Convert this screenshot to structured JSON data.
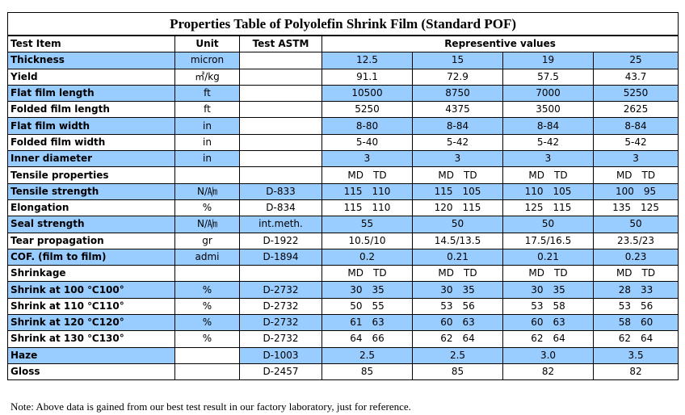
{
  "title": "Properties Table of Polyolefin Shrink Film  (Standard POF)",
  "header": {
    "test_item": "Test Item",
    "unit": "Unit",
    "test_astm": "Test  ASTM",
    "values": "Representive values"
  },
  "rows": [
    {
      "item": "Thickness",
      "unit": "micron",
      "astm": "",
      "v": [
        "12.5",
        "15",
        "19",
        "25"
      ],
      "shade": "blue"
    },
    {
      "item": "Yield",
      "unit": "㎡/kg",
      "astm": "",
      "v": [
        "91.1",
        "72.9",
        "57.5",
        "43.7"
      ],
      "shade": "white"
    },
    {
      "item": "Flat film length",
      "unit": "ft",
      "astm": "",
      "v": [
        "10500",
        "8750",
        "7000",
        "5250"
      ],
      "shade": "blue"
    },
    {
      "item": "Folded film length",
      "unit": "ft",
      "astm": "",
      "v": [
        "5250",
        "4375",
        "3500",
        "2625"
      ],
      "shade": "white"
    },
    {
      "item": "Flat film width",
      "unit": "in",
      "astm": "",
      "v": [
        "8-80",
        "8-84",
        "8-84",
        "8-84"
      ],
      "shade": "blue"
    },
    {
      "item": "Folded film width",
      "unit": "in",
      "astm": "",
      "v": [
        "5-40",
        "5-42",
        "5-42",
        "5-42"
      ],
      "shade": "white"
    },
    {
      "item": "Inner diameter",
      "unit": "in",
      "astm": "",
      "v": [
        "3",
        "3",
        "3",
        "3"
      ],
      "shade": "blue"
    },
    {
      "item": "Tensile properties",
      "unit": "",
      "astm": "",
      "p": [
        [
          "MD",
          "TD"
        ],
        [
          "MD",
          "TD"
        ],
        [
          "MD",
          "TD"
        ],
        [
          "MD",
          "TD"
        ]
      ],
      "shade": "white"
    },
    {
      "item": "Tensile strength",
      "unit": "N/㏟",
      "astm": "D-833",
      "p": [
        [
          "115",
          "110"
        ],
        [
          "115",
          "105"
        ],
        [
          "110",
          "105"
        ],
        [
          "100",
          "95"
        ]
      ],
      "shade": "blue"
    },
    {
      "item": "Elongation",
      "unit": "%",
      "astm": "D-834",
      "p": [
        [
          "115",
          "110"
        ],
        [
          "120",
          "115"
        ],
        [
          "125",
          "115"
        ],
        [
          "135",
          "125"
        ]
      ],
      "shade": "white"
    },
    {
      "item": "Seal strength",
      "unit": "N/㏟",
      "astm": "int.meth.",
      "v": [
        "55",
        "50",
        "50",
        "50"
      ],
      "shade": "blue"
    },
    {
      "item": "Tear propagation",
      "unit": "gr",
      "astm": "D-1922",
      "v": [
        "10.5/10",
        "14.5/13.5",
        "17.5/16.5",
        "23.5/23"
      ],
      "shade": "white"
    },
    {
      "item": "COF. (film to film)",
      "unit": "admi",
      "astm": "D-1894",
      "v": [
        "0.2",
        "0.21",
        "0.21",
        "0.23"
      ],
      "shade": "blue"
    },
    {
      "item": "Shrinkage",
      "unit": "",
      "astm": "",
      "p": [
        [
          "MD",
          "TD"
        ],
        [
          "MD",
          "TD"
        ],
        [
          "MD",
          "TD"
        ],
        [
          "MD",
          "TD"
        ]
      ],
      "shade": "white"
    },
    {
      "item": "Shrink at 100 ℃100°",
      "unit": "%",
      "astm": "D-2732",
      "p": [
        [
          "30",
          "35"
        ],
        [
          "30",
          "35"
        ],
        [
          "30",
          "35"
        ],
        [
          "28",
          "33"
        ]
      ],
      "shade": "blue"
    },
    {
      "item": "Shrink at 110 ℃110°",
      "unit": "%",
      "astm": "D-2732",
      "p": [
        [
          "50",
          "55"
        ],
        [
          "53",
          "56"
        ],
        [
          "53",
          "58"
        ],
        [
          "53",
          "56"
        ]
      ],
      "shade": "white"
    },
    {
      "item": "Shrink at 120 ℃120°",
      "unit": "%",
      "astm": "D-2732",
      "p": [
        [
          "61",
          "63"
        ],
        [
          "60",
          "63"
        ],
        [
          "60",
          "63"
        ],
        [
          "58",
          "60"
        ]
      ],
      "shade": "blue"
    },
    {
      "item": "Shrink at 130 ℃130°",
      "unit": "%",
      "astm": "D-2732",
      "p": [
        [
          "64",
          "66"
        ],
        [
          "62",
          "64"
        ],
        [
          "62",
          "64"
        ],
        [
          "62",
          "64"
        ]
      ],
      "shade": "white"
    },
    {
      "item": "Haze",
      "unit": "",
      "astm": "D-1003",
      "v": [
        "2.5",
        "2.5",
        "3.0",
        "3.5"
      ],
      "shade": "blue"
    },
    {
      "item": "Gloss",
      "unit": "",
      "astm": "D-2457",
      "v": [
        "85",
        "85",
        "82",
        "82"
      ],
      "shade": "white"
    }
  ],
  "note": "Note: Above data is gained from our best test result in our factory laboratory,  just for reference."
}
